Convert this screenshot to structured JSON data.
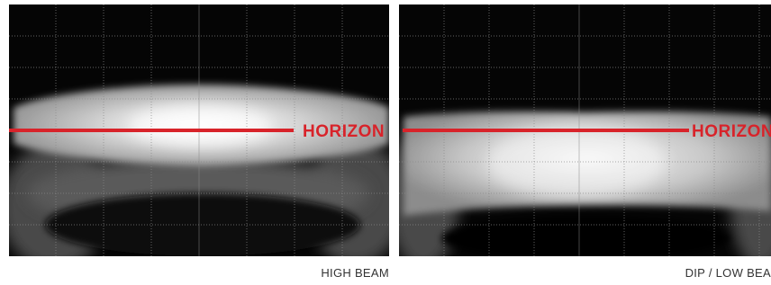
{
  "panels": [
    {
      "horizon_label": "HORIZON",
      "caption": "HIGH BEAM"
    },
    {
      "horizon_label": "HORIZON",
      "caption": "DIP / LOW BEA"
    }
  ]
}
